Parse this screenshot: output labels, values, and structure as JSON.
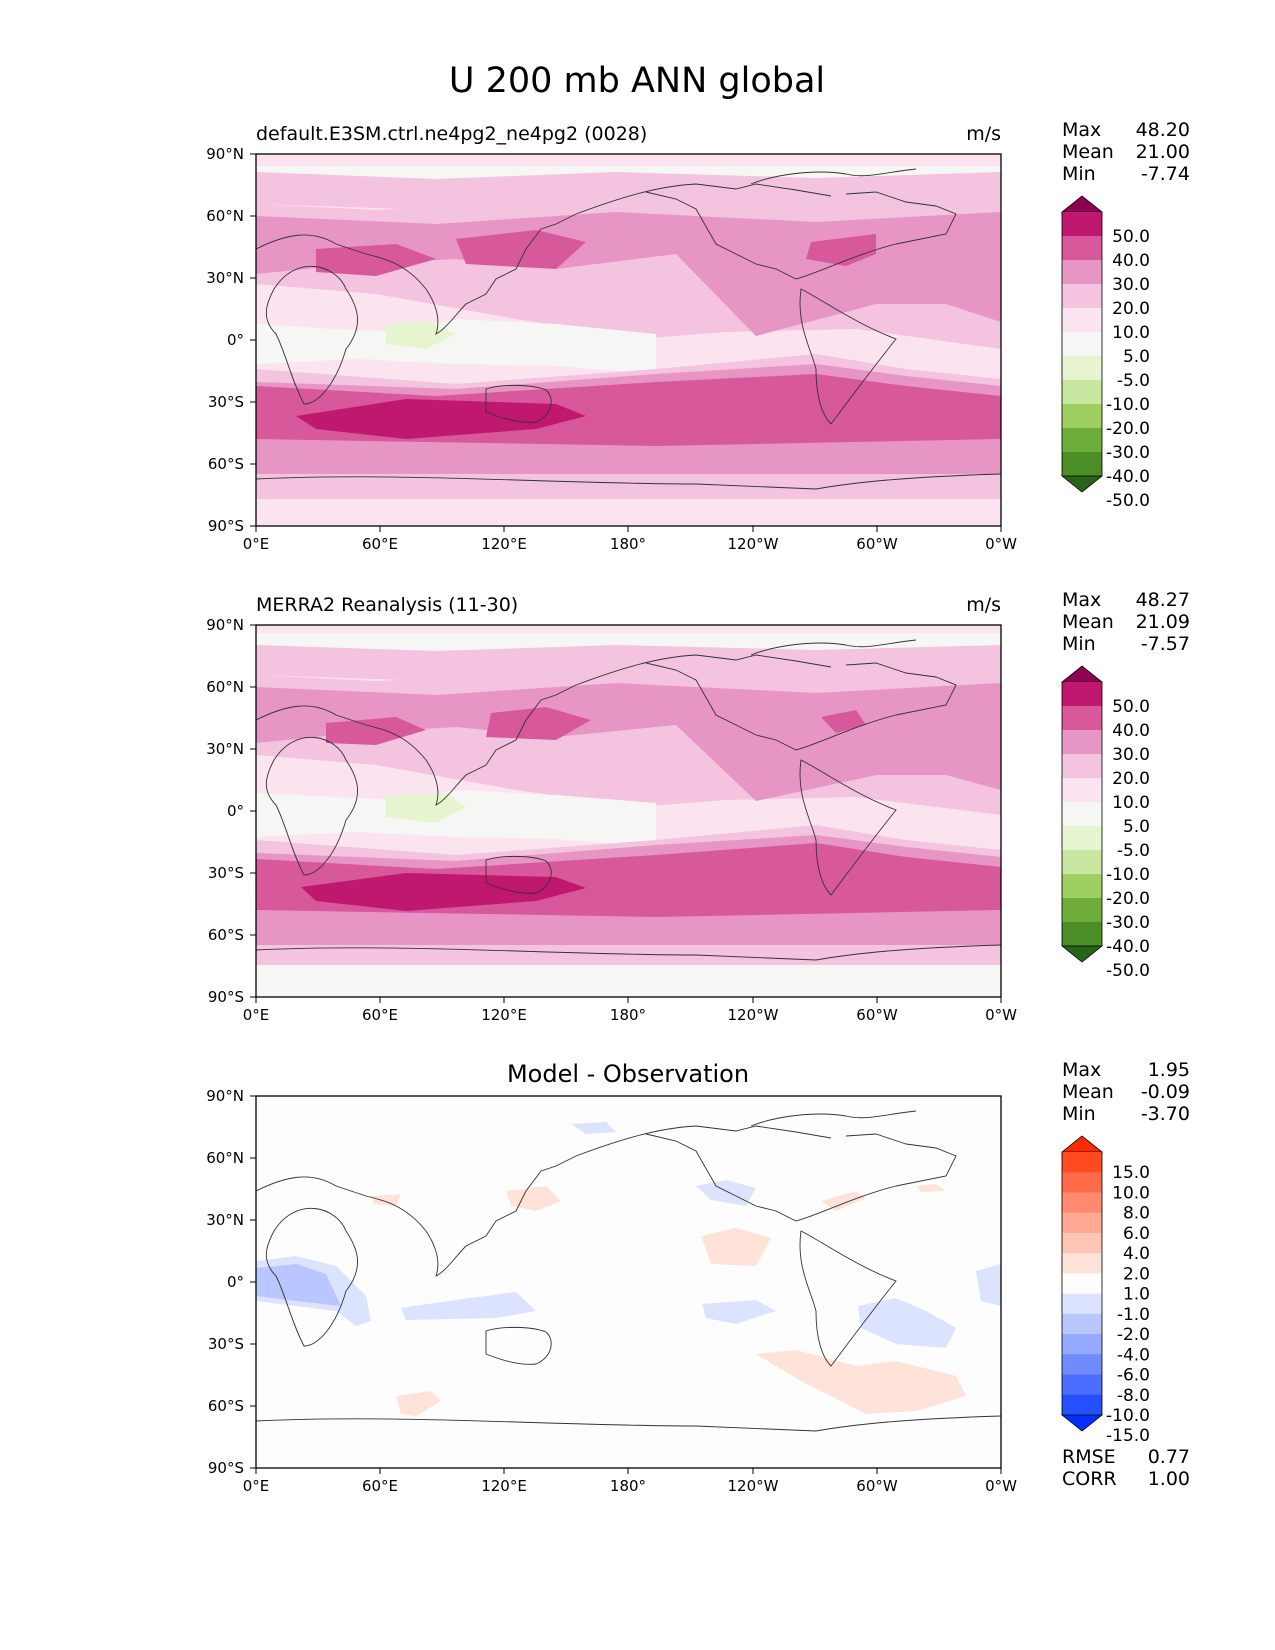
{
  "figure": {
    "title": "U 200 mb ANN global",
    "lat_ticks": [
      "90°N",
      "60°N",
      "30°N",
      "0°",
      "30°S",
      "60°S",
      "90°S"
    ],
    "lon_ticks": [
      "0°E",
      "60°E",
      "120°E",
      "180°",
      "120°W",
      "60°W",
      "0°W"
    ]
  },
  "panels": [
    {
      "title_left": "default.E3SM.ctrl.ne4pg2_ne4pg2 (0028)",
      "title_center": "",
      "units": "m/s",
      "stats": [
        {
          "label": "Max",
          "value": "48.20"
        },
        {
          "label": "Mean",
          "value": "21.00"
        },
        {
          "label": "Min",
          "value": "-7.74"
        }
      ],
      "colorbar": {
        "labels": [
          "50.0",
          "40.0",
          "30.0",
          "20.0",
          "10.0",
          "5.0",
          "-5.0",
          "-10.0",
          "-20.0",
          "-30.0",
          "-40.0",
          "-50.0"
        ],
        "colors": [
          "#8e0152",
          "#c0186e",
          "#d8589c",
          "#e795c4",
          "#f3c3e0",
          "#fbe4f0",
          "#f6f6f4",
          "#e6f5d0",
          "#c8e7a0",
          "#9dd060",
          "#6fad3a",
          "#4b8d26",
          "#27641a"
        ]
      }
    },
    {
      "title_left": "MERRA2 Reanalysis (11-30)",
      "title_center": "",
      "units": "m/s",
      "stats": [
        {
          "label": "Max",
          "value": "48.27"
        },
        {
          "label": "Mean",
          "value": "21.09"
        },
        {
          "label": "Min",
          "value": "-7.57"
        }
      ],
      "colorbar": {
        "labels": [
          "50.0",
          "40.0",
          "30.0",
          "20.0",
          "10.0",
          "5.0",
          "-5.0",
          "-10.0",
          "-20.0",
          "-30.0",
          "-40.0",
          "-50.0"
        ],
        "colors": [
          "#8e0152",
          "#c0186e",
          "#d8589c",
          "#e795c4",
          "#f3c3e0",
          "#fbe4f0",
          "#f6f6f4",
          "#e6f5d0",
          "#c8e7a0",
          "#9dd060",
          "#6fad3a",
          "#4b8d26",
          "#27641a"
        ]
      }
    },
    {
      "title_left": "",
      "title_center": "Model - Observation",
      "units": "",
      "stats": [
        {
          "label": "Max",
          "value": "1.95"
        },
        {
          "label": "Mean",
          "value": "-0.09"
        },
        {
          "label": "Min",
          "value": "-3.70"
        }
      ],
      "extra_stats": [
        {
          "label": "RMSE",
          "value": "0.77"
        },
        {
          "label": "CORR",
          "value": "1.00"
        }
      ],
      "colorbar": {
        "labels": [
          "15.0",
          "10.0",
          "8.0",
          "6.0",
          "4.0",
          "2.0",
          "1.0",
          "-1.0",
          "-2.0",
          "-4.0",
          "-6.0",
          "-8.0",
          "-10.0",
          "-15.0"
        ],
        "colors": [
          "#ff2a00",
          "#ff4a22",
          "#ff6a48",
          "#ff8a70",
          "#ffa994",
          "#ffc5b5",
          "#ffe2d8",
          "#fdfdfd",
          "#dce3ff",
          "#b9c6ff",
          "#94a9ff",
          "#6f8bff",
          "#4a6cff",
          "#2450ff",
          "#0430ff"
        ]
      }
    }
  ]
}
